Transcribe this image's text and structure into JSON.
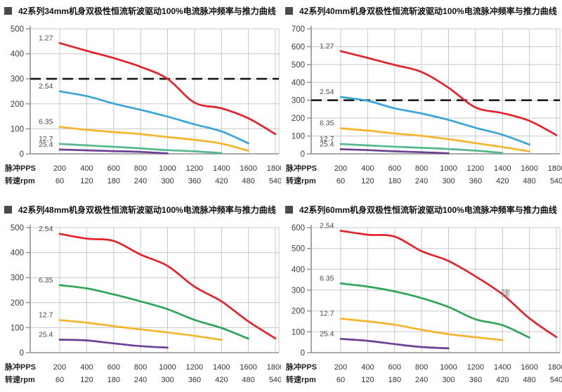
{
  "page": {
    "background": "#ffffff",
    "bullet_color": "#4a4a4a",
    "grid_color": "#c8c8c8",
    "axis_color": "#8f8f8f",
    "dashed_color": "#1b1b1b",
    "tick_text_color": "#3d3d3d",
    "series_label_color": "#4a4a4a",
    "watermark_color": "#7a7a7a"
  },
  "chart_data": [
    {
      "type": "line",
      "title": "42系列34mm机身双极性恒流斩波驱动100%电流脉冲频率与推力曲线",
      "x_header_1": "脉冲PPS",
      "x_header_2": "转速rpm",
      "x_pps": [
        200,
        400,
        600,
        800,
        1000,
        1200,
        1400,
        1600,
        1800
      ],
      "x_rpm": [
        60,
        120,
        180,
        240,
        300,
        360,
        420,
        480,
        540
      ],
      "ylim": [
        0,
        500
      ],
      "ytick_step": 100,
      "grid": true,
      "dashed_y": 300,
      "legend_position": "inline-left-labels",
      "series": [
        {
          "name": "1.27",
          "color": "#e2232b",
          "x": [
            200,
            400,
            600,
            800,
            1000,
            1200,
            1400,
            1600,
            1800
          ],
          "values": [
            443,
            412,
            383,
            348,
            300,
            205,
            182,
            142,
            79
          ]
        },
        {
          "name": "2.54",
          "color": "#39a6d9",
          "x": [
            200,
            400,
            600,
            800,
            1000,
            1200,
            1400,
            1600
          ],
          "values": [
            250,
            231,
            201,
            176,
            149,
            118,
            90,
            42
          ]
        },
        {
          "name": "6.35",
          "color": "#f6b42c",
          "x": [
            200,
            400,
            600,
            800,
            1000,
            1200,
            1400,
            1600
          ],
          "values": [
            108,
            96,
            87,
            79,
            67,
            56,
            41,
            12
          ]
        },
        {
          "name": "12.7",
          "color": "#55b98e",
          "x": [
            200,
            400,
            600,
            800,
            1000,
            1200,
            1400
          ],
          "values": [
            40,
            34,
            28,
            22,
            15,
            10,
            3
          ]
        },
        {
          "name": "25.4",
          "color": "#6b4095",
          "x": [
            200,
            400,
            600,
            800,
            1000
          ],
          "values": [
            17,
            14,
            11,
            8,
            2
          ]
        }
      ]
    },
    {
      "type": "line",
      "title": "42系列40mm机身双极性恒流斩波驱动100%电流脉冲频率与推力曲线",
      "x_header_1": "脉冲PPS",
      "x_header_2": "转速rpm",
      "x_pps": [
        200,
        400,
        600,
        800,
        1000,
        1200,
        1400,
        1600,
        1800
      ],
      "x_rpm": [
        60,
        120,
        180,
        240,
        300,
        360,
        420,
        480,
        540
      ],
      "ylim": [
        0,
        700
      ],
      "ytick_step": 100,
      "grid": true,
      "dashed_y": 300,
      "legend_position": "inline-left-labels",
      "series": [
        {
          "name": "1.27",
          "color": "#e2232b",
          "x": [
            200,
            400,
            600,
            800,
            1000,
            1200,
            1400,
            1600,
            1800
          ],
          "values": [
            575,
            537,
            498,
            458,
            370,
            260,
            228,
            185,
            105
          ]
        },
        {
          "name": "2.54",
          "color": "#39a6d9",
          "x": [
            200,
            400,
            600,
            800,
            1000,
            1200,
            1400,
            1600
          ],
          "values": [
            318,
            297,
            255,
            226,
            190,
            146,
            107,
            52
          ]
        },
        {
          "name": "6.35",
          "color": "#f6b42c",
          "x": [
            200,
            400,
            600,
            800,
            1000,
            1200,
            1400,
            1600
          ],
          "values": [
            143,
            130,
            114,
            101,
            82,
            60,
            38,
            14
          ]
        },
        {
          "name": "12.7",
          "color": "#55b98e",
          "x": [
            200,
            400,
            600,
            800,
            1000,
            1200,
            1400
          ],
          "values": [
            55,
            47,
            40,
            34,
            27,
            18,
            5
          ]
        },
        {
          "name": "25.4",
          "color": "#6b4095",
          "x": [
            200,
            400,
            600,
            800,
            1000
          ],
          "values": [
            26,
            21,
            14,
            9,
            3
          ]
        }
      ]
    },
    {
      "type": "line",
      "title": "42系列48mm机身双极性恒流斩波驱动100%电流脉冲频率与推力曲线",
      "x_header_1": "脉冲PPS",
      "x_header_2": "转速rpm",
      "x_pps": [
        200,
        400,
        600,
        800,
        1000,
        1200,
        1400,
        1600,
        1800
      ],
      "x_rpm": [
        60,
        120,
        180,
        240,
        300,
        360,
        420,
        480,
        540
      ],
      "ylim": [
        0,
        500
      ],
      "ytick_step": 100,
      "grid": true,
      "dashed_y": null,
      "legend_position": "inline-left-labels",
      "series": [
        {
          "name": "2.54",
          "color": "#e2232b",
          "x": [
            200,
            400,
            600,
            800,
            1000,
            1200,
            1400,
            1600,
            1800
          ],
          "values": [
            475,
            456,
            447,
            392,
            347,
            264,
            205,
            125,
            57
          ]
        },
        {
          "name": "6.35",
          "color": "#2fa557",
          "x": [
            200,
            400,
            600,
            800,
            1000,
            1200,
            1400,
            1600
          ],
          "values": [
            270,
            257,
            233,
            205,
            174,
            131,
            99,
            56
          ]
        },
        {
          "name": "12.7",
          "color": "#f6b42c",
          "x": [
            200,
            400,
            600,
            800,
            1000,
            1200,
            1400
          ],
          "values": [
            130,
            120,
            106,
            93,
            81,
            67,
            51
          ]
        },
        {
          "name": "25.4",
          "color": "#6b4095",
          "x": [
            200,
            400,
            600,
            800,
            1000
          ],
          "values": [
            52,
            49,
            37,
            26,
            20
          ]
        }
      ]
    },
    {
      "type": "line",
      "title": "42系列60mm机身双极性恒流斩波驱动100%电流脉冲频率与推力曲线",
      "x_header_1": "脉冲PPS",
      "x_header_2": "转速rpm",
      "x_pps": [
        200,
        400,
        600,
        800,
        1000,
        1200,
        1400,
        1600,
        1800
      ],
      "x_rpm": [
        60,
        120,
        180,
        240,
        300,
        360,
        420,
        480,
        540
      ],
      "ylim": [
        0,
        600
      ],
      "ytick_step": 100,
      "grid": true,
      "dashed_y": null,
      "legend_position": "inline-left-labels",
      "watermark": {
        "text": "建",
        "pps": 1390,
        "value": 268
      },
      "series": [
        {
          "name": "2.54",
          "color": "#e2232b",
          "x": [
            200,
            400,
            600,
            800,
            1000,
            1200,
            1400,
            1600,
            1800
          ],
          "values": [
            585,
            566,
            557,
            487,
            440,
            366,
            280,
            165,
            75
          ]
        },
        {
          "name": "6.35",
          "color": "#2fa557",
          "x": [
            200,
            400,
            600,
            800,
            1000,
            1200,
            1400,
            1600
          ],
          "values": [
            332,
            317,
            294,
            262,
            219,
            160,
            132,
            72
          ]
        },
        {
          "name": "12.7",
          "color": "#f6b42c",
          "x": [
            200,
            400,
            600,
            800,
            1000,
            1200,
            1400
          ],
          "values": [
            163,
            150,
            134,
            110,
            89,
            74,
            60
          ]
        },
        {
          "name": "25.4",
          "color": "#6b4095",
          "x": [
            200,
            400,
            600,
            800,
            1000
          ],
          "values": [
            66,
            57,
            41,
            27,
            21
          ]
        }
      ]
    }
  ]
}
